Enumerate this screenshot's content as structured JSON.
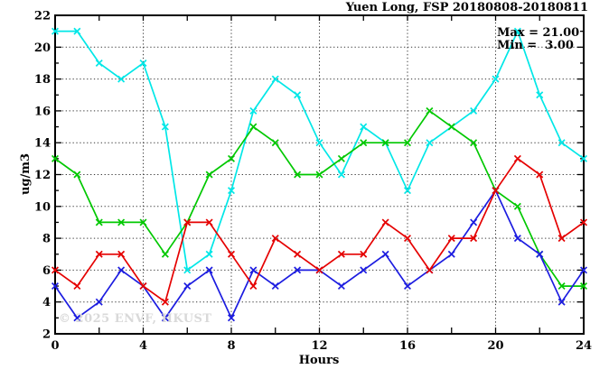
{
  "header": {
    "title": "Yuen Long, FSP 20180808-20180811"
  },
  "stats": {
    "max_label": "Max = 21.00",
    "min_label": "Min =  3.00"
  },
  "watermark": "© 2025 ENVF, HKUST",
  "chart_data": {
    "type": "line",
    "title": "Yuen Long, FSP 20180808-20180811",
    "xlabel": "Hours",
    "ylabel": "ug/m3",
    "xlim": [
      0,
      24
    ],
    "ylim": [
      2,
      22
    ],
    "grid": "dotted",
    "legend": "none",
    "max": 21.0,
    "min": 3.0,
    "x_grid_lines": [
      4,
      8,
      12,
      16,
      20
    ],
    "y_grid_lines": [
      4,
      6,
      8,
      10,
      12,
      14,
      16,
      18,
      20
    ],
    "x_tick_step": 2,
    "y_tick_step": 1,
    "x_tick_labels": [
      "0",
      "4",
      "8",
      "12",
      "16",
      "20",
      "24"
    ],
    "x_tick_label_positions": [
      0,
      4,
      8,
      12,
      16,
      20,
      24
    ],
    "y_tick_labels": [
      "2",
      "4",
      "6",
      "8",
      "10",
      "12",
      "14",
      "16",
      "18",
      "20",
      "22"
    ],
    "y_tick_label_positions": [
      2,
      4,
      6,
      8,
      10,
      12,
      14,
      16,
      18,
      20,
      22
    ],
    "x": [
      0,
      1,
      2,
      3,
      4,
      5,
      6,
      7,
      8,
      9,
      10,
      11,
      12,
      13,
      14,
      15,
      16,
      17,
      18,
      19,
      20,
      21,
      22,
      23,
      24
    ],
    "series": [
      {
        "name": "cyan",
        "color": "#00e7e7",
        "values": [
          21,
          21,
          19,
          18,
          19,
          15,
          6,
          7,
          11,
          16,
          18,
          17,
          14,
          12,
          15,
          14,
          11,
          14,
          15,
          16,
          18,
          21,
          17,
          14,
          13
        ]
      },
      {
        "name": "green",
        "color": "#00c800",
        "values": [
          13,
          12,
          9,
          9,
          9,
          7,
          9,
          12,
          13,
          15,
          14,
          12,
          12,
          13,
          14,
          14,
          14,
          16,
          15,
          14,
          11,
          10,
          7,
          5,
          5
        ]
      },
      {
        "name": "blue",
        "color": "#1c1ce0",
        "values": [
          5,
          3,
          4,
          6,
          5,
          3,
          5,
          6,
          3,
          6,
          5,
          6,
          6,
          5,
          6,
          7,
          5,
          6,
          7,
          9,
          11,
          8,
          7,
          4,
          6
        ]
      },
      {
        "name": "red",
        "color": "#e50000",
        "values": [
          6,
          5,
          7,
          7,
          5,
          4,
          9,
          9,
          7,
          5,
          8,
          7,
          6,
          7,
          7,
          9,
          8,
          6,
          8,
          8,
          11,
          13,
          12,
          8,
          9
        ]
      }
    ]
  }
}
